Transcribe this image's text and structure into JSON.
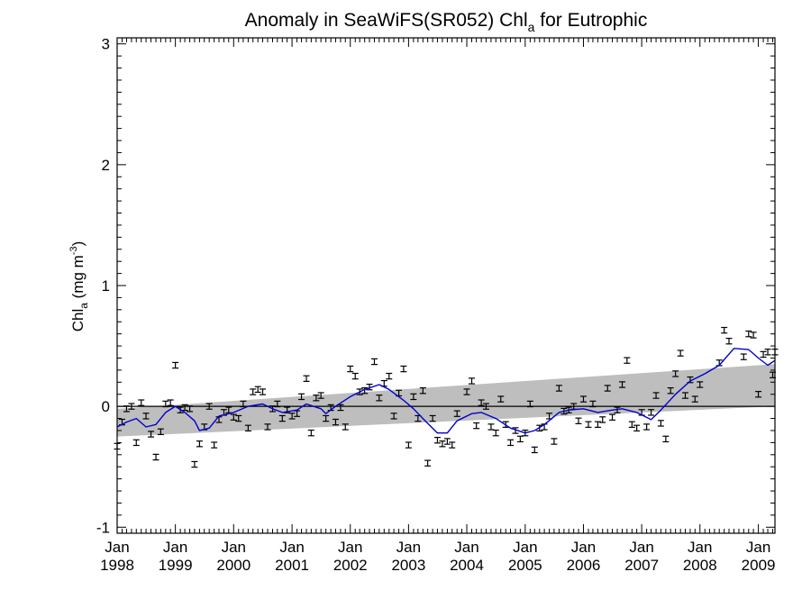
{
  "chart_data": {
    "type": "scatter",
    "title_main": "Anomaly in SeaWiFS(SR052) Chl",
    "title_sub": "a",
    "title_tail": " for Eutrophic",
    "ylabel_main": "Chl",
    "ylabel_sub": "a",
    "ylabel_unit": " (mg m",
    "ylabel_sup": "-3",
    "ylabel_close": ")",
    "ylim": [
      -1.05,
      3.05
    ],
    "xlim": [
      "1998-01-01",
      "2009-04-15"
    ],
    "yticks": [
      {
        "value": -1,
        "label": "-1"
      },
      {
        "value": 0,
        "label": "0"
      },
      {
        "value": 1,
        "label": "1"
      },
      {
        "value": 2,
        "label": "2"
      },
      {
        "value": 3,
        "label": "3"
      }
    ],
    "xticks": [
      {
        "date": "1998-01-01",
        "month": "Jan",
        "year": "1998"
      },
      {
        "date": "1999-01-01",
        "month": "Jan",
        "year": "1999"
      },
      {
        "date": "2000-01-01",
        "month": "Jan",
        "year": "2000"
      },
      {
        "date": "2001-01-01",
        "month": "Jan",
        "year": "2001"
      },
      {
        "date": "2002-01-01",
        "month": "Jan",
        "year": "2002"
      },
      {
        "date": "2003-01-01",
        "month": "Jan",
        "year": "2003"
      },
      {
        "date": "2004-01-01",
        "month": "Jan",
        "year": "2004"
      },
      {
        "date": "2005-01-01",
        "month": "Jan",
        "year": "2005"
      },
      {
        "date": "2006-01-01",
        "month": "Jan",
        "year": "2006"
      },
      {
        "date": "2007-01-01",
        "month": "Jan",
        "year": "2007"
      },
      {
        "date": "2008-01-01",
        "month": "Jan",
        "year": "2008"
      },
      {
        "date": "2009-01-01",
        "month": "Jan",
        "year": "2009"
      }
    ],
    "trend_band": {
      "start_date": "1998-01-01",
      "end_date": "2009-04-15",
      "lower_start": -0.25,
      "lower_end": 0.0,
      "upper_start": -0.02,
      "upper_end": 0.35
    },
    "zero_line": 0,
    "series": [
      {
        "kind": "monthly_points_with_error_bars",
        "error_halfwidth": 0.012,
        "points": [
          {
            "date": "1998-01-01",
            "y": -0.33
          },
          {
            "date": "1998-02-01",
            "y": -0.13
          },
          {
            "date": "1998-03-01",
            "y": -0.02
          },
          {
            "date": "1998-04-01",
            "y": 0.0
          },
          {
            "date": "1998-05-01",
            "y": -0.3
          },
          {
            "date": "1998-06-01",
            "y": 0.03
          },
          {
            "date": "1998-07-01",
            "y": -0.08
          },
          {
            "date": "1998-08-01",
            "y": -0.23
          },
          {
            "date": "1998-09-01",
            "y": -0.42
          },
          {
            "date": "1998-10-01",
            "y": -0.21
          },
          {
            "date": "1998-11-01",
            "y": 0.02
          },
          {
            "date": "1998-12-01",
            "y": 0.03
          },
          {
            "date": "1999-01-01",
            "y": 0.34
          },
          {
            "date": "1999-02-01",
            "y": -0.03
          },
          {
            "date": "1999-03-01",
            "y": -0.01
          },
          {
            "date": "1999-04-01",
            "y": -0.02
          },
          {
            "date": "1999-05-01",
            "y": -0.48
          },
          {
            "date": "1999-06-01",
            "y": -0.31
          },
          {
            "date": "1999-07-01",
            "y": -0.17
          },
          {
            "date": "1999-08-01",
            "y": 0.0
          },
          {
            "date": "1999-09-01",
            "y": -0.32
          },
          {
            "date": "1999-10-01",
            "y": -0.11
          },
          {
            "date": "1999-11-01",
            "y": -0.05
          },
          {
            "date": "1999-12-01",
            "y": -0.03
          },
          {
            "date": "2000-01-01",
            "y": -0.09
          },
          {
            "date": "2000-02-01",
            "y": -0.1
          },
          {
            "date": "2000-03-01",
            "y": 0.02
          },
          {
            "date": "2000-04-01",
            "y": -0.18
          },
          {
            "date": "2000-05-01",
            "y": 0.12
          },
          {
            "date": "2000-06-01",
            "y": 0.14
          },
          {
            "date": "2000-07-01",
            "y": 0.12
          },
          {
            "date": "2000-08-01",
            "y": -0.17
          },
          {
            "date": "2000-09-01",
            "y": -0.02
          },
          {
            "date": "2000-10-01",
            "y": 0.02
          },
          {
            "date": "2000-11-01",
            "y": -0.1
          },
          {
            "date": "2000-12-01",
            "y": -0.03
          },
          {
            "date": "2001-01-01",
            "y": -0.08
          },
          {
            "date": "2001-02-01",
            "y": -0.06
          },
          {
            "date": "2001-03-01",
            "y": 0.08
          },
          {
            "date": "2001-04-01",
            "y": 0.23
          },
          {
            "date": "2001-05-01",
            "y": -0.22
          },
          {
            "date": "2001-06-01",
            "y": 0.07
          },
          {
            "date": "2001-07-01",
            "y": 0.09
          },
          {
            "date": "2001-08-01",
            "y": -0.1
          },
          {
            "date": "2001-09-01",
            "y": -0.01
          },
          {
            "date": "2001-10-01",
            "y": -0.13
          },
          {
            "date": "2001-11-01",
            "y": -0.01
          },
          {
            "date": "2001-12-01",
            "y": -0.17
          },
          {
            "date": "2002-01-01",
            "y": 0.31
          },
          {
            "date": "2002-02-01",
            "y": 0.25
          },
          {
            "date": "2002-03-01",
            "y": 0.12
          },
          {
            "date": "2002-04-01",
            "y": 0.13
          },
          {
            "date": "2002-05-01",
            "y": 0.16
          },
          {
            "date": "2002-06-01",
            "y": 0.37
          },
          {
            "date": "2002-07-01",
            "y": 0.07
          },
          {
            "date": "2002-08-01",
            "y": 0.19
          },
          {
            "date": "2002-09-01",
            "y": 0.25
          },
          {
            "date": "2002-10-01",
            "y": -0.08
          },
          {
            "date": "2002-11-01",
            "y": 0.11
          },
          {
            "date": "2002-12-01",
            "y": 0.31
          },
          {
            "date": "2003-01-01",
            "y": -0.32
          },
          {
            "date": "2003-02-01",
            "y": 0.08
          },
          {
            "date": "2003-03-01",
            "y": -0.1
          },
          {
            "date": "2003-04-01",
            "y": 0.13
          },
          {
            "date": "2003-05-01",
            "y": -0.47
          },
          {
            "date": "2003-06-01",
            "y": -0.1
          },
          {
            "date": "2003-07-01",
            "y": -0.28
          },
          {
            "date": "2003-08-01",
            "y": -0.31
          },
          {
            "date": "2003-09-01",
            "y": -0.29
          },
          {
            "date": "2003-10-01",
            "y": -0.32
          },
          {
            "date": "2003-11-01",
            "y": -0.06
          },
          {
            "date": "2004-01-01",
            "y": 0.12
          },
          {
            "date": "2004-02-01",
            "y": 0.21
          },
          {
            "date": "2004-03-01",
            "y": -0.16
          },
          {
            "date": "2004-04-01",
            "y": 0.03
          },
          {
            "date": "2004-05-01",
            "y": 0.0
          },
          {
            "date": "2004-06-01",
            "y": -0.17
          },
          {
            "date": "2004-07-01",
            "y": -0.22
          },
          {
            "date": "2004-08-01",
            "y": 0.06
          },
          {
            "date": "2004-09-01",
            "y": -0.15
          },
          {
            "date": "2004-10-01",
            "y": -0.3
          },
          {
            "date": "2004-11-01",
            "y": -0.2
          },
          {
            "date": "2004-12-01",
            "y": -0.27
          },
          {
            "date": "2005-01-01",
            "y": -0.22
          },
          {
            "date": "2005-02-01",
            "y": 0.02
          },
          {
            "date": "2005-03-01",
            "y": -0.36
          },
          {
            "date": "2005-04-01",
            "y": -0.18
          },
          {
            "date": "2005-05-01",
            "y": -0.17
          },
          {
            "date": "2005-06-01",
            "y": -0.08
          },
          {
            "date": "2005-07-01",
            "y": -0.29
          },
          {
            "date": "2005-08-01",
            "y": 0.15
          },
          {
            "date": "2005-09-01",
            "y": -0.04
          },
          {
            "date": "2005-10-01",
            "y": -0.03
          },
          {
            "date": "2005-11-01",
            "y": 0.0
          },
          {
            "date": "2005-12-01",
            "y": -0.12
          },
          {
            "date": "2006-01-01",
            "y": 0.06
          },
          {
            "date": "2006-02-01",
            "y": -0.15
          },
          {
            "date": "2006-03-01",
            "y": 0.02
          },
          {
            "date": "2006-04-01",
            "y": -0.15
          },
          {
            "date": "2006-05-01",
            "y": -0.11
          },
          {
            "date": "2006-06-01",
            "y": 0.15
          },
          {
            "date": "2006-07-01",
            "y": -0.09
          },
          {
            "date": "2006-08-01",
            "y": -0.03
          },
          {
            "date": "2006-09-01",
            "y": 0.18
          },
          {
            "date": "2006-10-01",
            "y": 0.38
          },
          {
            "date": "2006-11-01",
            "y": -0.15
          },
          {
            "date": "2006-12-01",
            "y": -0.18
          },
          {
            "date": "2007-01-01",
            "y": -0.05
          },
          {
            "date": "2007-02-01",
            "y": -0.17
          },
          {
            "date": "2007-03-01",
            "y": -0.05
          },
          {
            "date": "2007-04-01",
            "y": 0.09
          },
          {
            "date": "2007-05-01",
            "y": -0.14
          },
          {
            "date": "2007-06-01",
            "y": -0.27
          },
          {
            "date": "2007-07-01",
            "y": 0.13
          },
          {
            "date": "2007-08-01",
            "y": 0.27
          },
          {
            "date": "2007-09-01",
            "y": 0.44
          },
          {
            "date": "2007-10-01",
            "y": 0.09
          },
          {
            "date": "2007-11-01",
            "y": 0.22
          },
          {
            "date": "2007-12-01",
            "y": 0.06
          },
          {
            "date": "2008-01-01",
            "y": 0.18
          },
          {
            "date": "2008-05-01",
            "y": 0.36
          },
          {
            "date": "2008-06-01",
            "y": 0.63
          },
          {
            "date": "2008-07-01",
            "y": 0.54
          },
          {
            "date": "2008-10-01",
            "y": 0.41
          },
          {
            "date": "2008-11-01",
            "y": 0.6
          },
          {
            "date": "2008-12-01",
            "y": 0.59
          },
          {
            "date": "2009-01-01",
            "y": 0.1
          },
          {
            "date": "2009-02-01",
            "y": 0.43
          },
          {
            "date": "2009-03-01",
            "y": 0.45
          },
          {
            "date": "2009-04-01",
            "y": 0.26
          },
          {
            "date": "2009-04-15",
            "y": 0.45
          }
        ]
      },
      {
        "kind": "running_mean_line",
        "color": "#0000cc",
        "points": [
          {
            "date": "1998-01-01",
            "y": -0.17
          },
          {
            "date": "1998-03-01",
            "y": -0.13
          },
          {
            "date": "1998-05-01",
            "y": -0.1
          },
          {
            "date": "1998-07-01",
            "y": -0.17
          },
          {
            "date": "1998-09-01",
            "y": -0.15
          },
          {
            "date": "1998-11-01",
            "y": -0.05
          },
          {
            "date": "1999-01-01",
            "y": 0.0
          },
          {
            "date": "1999-03-01",
            "y": -0.05
          },
          {
            "date": "1999-05-01",
            "y": -0.12
          },
          {
            "date": "1999-06-01",
            "y": -0.2
          },
          {
            "date": "1999-08-01",
            "y": -0.18
          },
          {
            "date": "1999-10-01",
            "y": -0.08
          },
          {
            "date": "2000-01-01",
            "y": -0.05
          },
          {
            "date": "2000-04-01",
            "y": 0.0
          },
          {
            "date": "2000-07-01",
            "y": 0.02
          },
          {
            "date": "2000-09-01",
            "y": -0.02
          },
          {
            "date": "2000-11-01",
            "y": -0.05
          },
          {
            "date": "2001-02-01",
            "y": -0.03
          },
          {
            "date": "2001-04-01",
            "y": 0.02
          },
          {
            "date": "2001-07-01",
            "y": -0.02
          },
          {
            "date": "2001-08-01",
            "y": -0.06
          },
          {
            "date": "2001-10-01",
            "y": 0.0
          },
          {
            "date": "2002-01-01",
            "y": 0.08
          },
          {
            "date": "2002-04-01",
            "y": 0.14
          },
          {
            "date": "2002-07-01",
            "y": 0.18
          },
          {
            "date": "2002-09-01",
            "y": 0.14
          },
          {
            "date": "2002-12-01",
            "y": 0.05
          },
          {
            "date": "2003-02-01",
            "y": -0.02
          },
          {
            "date": "2003-04-01",
            "y": -0.1
          },
          {
            "date": "2003-07-01",
            "y": -0.22
          },
          {
            "date": "2003-09-01",
            "y": -0.22
          },
          {
            "date": "2003-11-01",
            "y": -0.12
          },
          {
            "date": "2004-02-01",
            "y": -0.06
          },
          {
            "date": "2004-04-01",
            "y": -0.05
          },
          {
            "date": "2004-07-01",
            "y": -0.1
          },
          {
            "date": "2004-10-01",
            "y": -0.18
          },
          {
            "date": "2005-01-01",
            "y": -0.22
          },
          {
            "date": "2005-03-01",
            "y": -0.2
          },
          {
            "date": "2005-05-01",
            "y": -0.15
          },
          {
            "date": "2005-08-01",
            "y": -0.05
          },
          {
            "date": "2005-10-01",
            "y": -0.03
          },
          {
            "date": "2006-01-01",
            "y": -0.02
          },
          {
            "date": "2006-04-01",
            "y": -0.05
          },
          {
            "date": "2006-07-01",
            "y": -0.03
          },
          {
            "date": "2006-09-01",
            "y": -0.02
          },
          {
            "date": "2006-12-01",
            "y": -0.05
          },
          {
            "date": "2007-03-01",
            "y": -0.11
          },
          {
            "date": "2007-05-01",
            "y": -0.03
          },
          {
            "date": "2007-08-01",
            "y": 0.1
          },
          {
            "date": "2007-11-01",
            "y": 0.21
          },
          {
            "date": "2008-02-01",
            "y": 0.27
          },
          {
            "date": "2008-05-01",
            "y": 0.34
          },
          {
            "date": "2008-08-01",
            "y": 0.48
          },
          {
            "date": "2008-11-01",
            "y": 0.47
          },
          {
            "date": "2009-01-01",
            "y": 0.4
          },
          {
            "date": "2009-03-01",
            "y": 0.34
          },
          {
            "date": "2009-04-15",
            "y": 0.38
          }
        ]
      }
    ]
  }
}
